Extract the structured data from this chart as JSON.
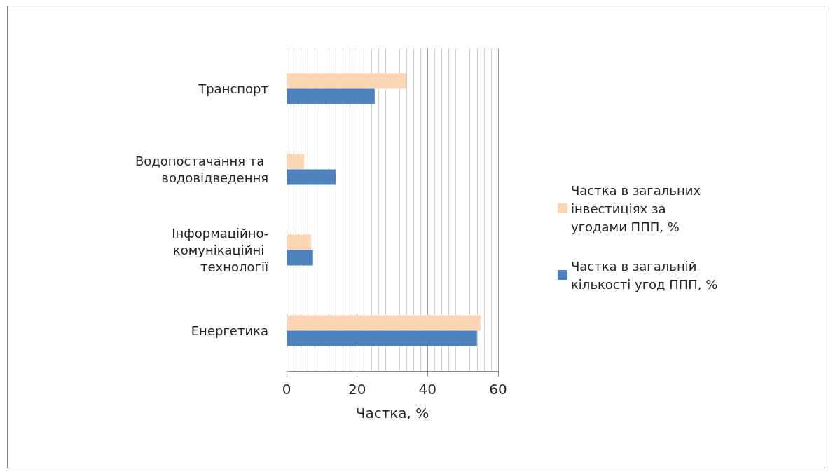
{
  "chart_data": {
    "type": "bar",
    "orientation": "horizontal",
    "xlabel": "Частка, %",
    "categories": [
      "Транспорт",
      "Водопостачання та водовідведення",
      "Інформаційно-комунікаційні технології",
      "Енергетика"
    ],
    "series": [
      {
        "name": "Частка в загальних інвестиціях за угодами ППП, %",
        "color": "#fcd5b5",
        "values": [
          34,
          5,
          7,
          55
        ]
      },
      {
        "name": "Частка в загальній кількості угод ППП, %",
        "color": "#4f81bd",
        "values": [
          25,
          14,
          7.5,
          54
        ]
      }
    ],
    "xlim": [
      0,
      60
    ],
    "xticks": [
      0,
      20,
      40,
      60
    ],
    "grid": "x",
    "legend": "right"
  }
}
